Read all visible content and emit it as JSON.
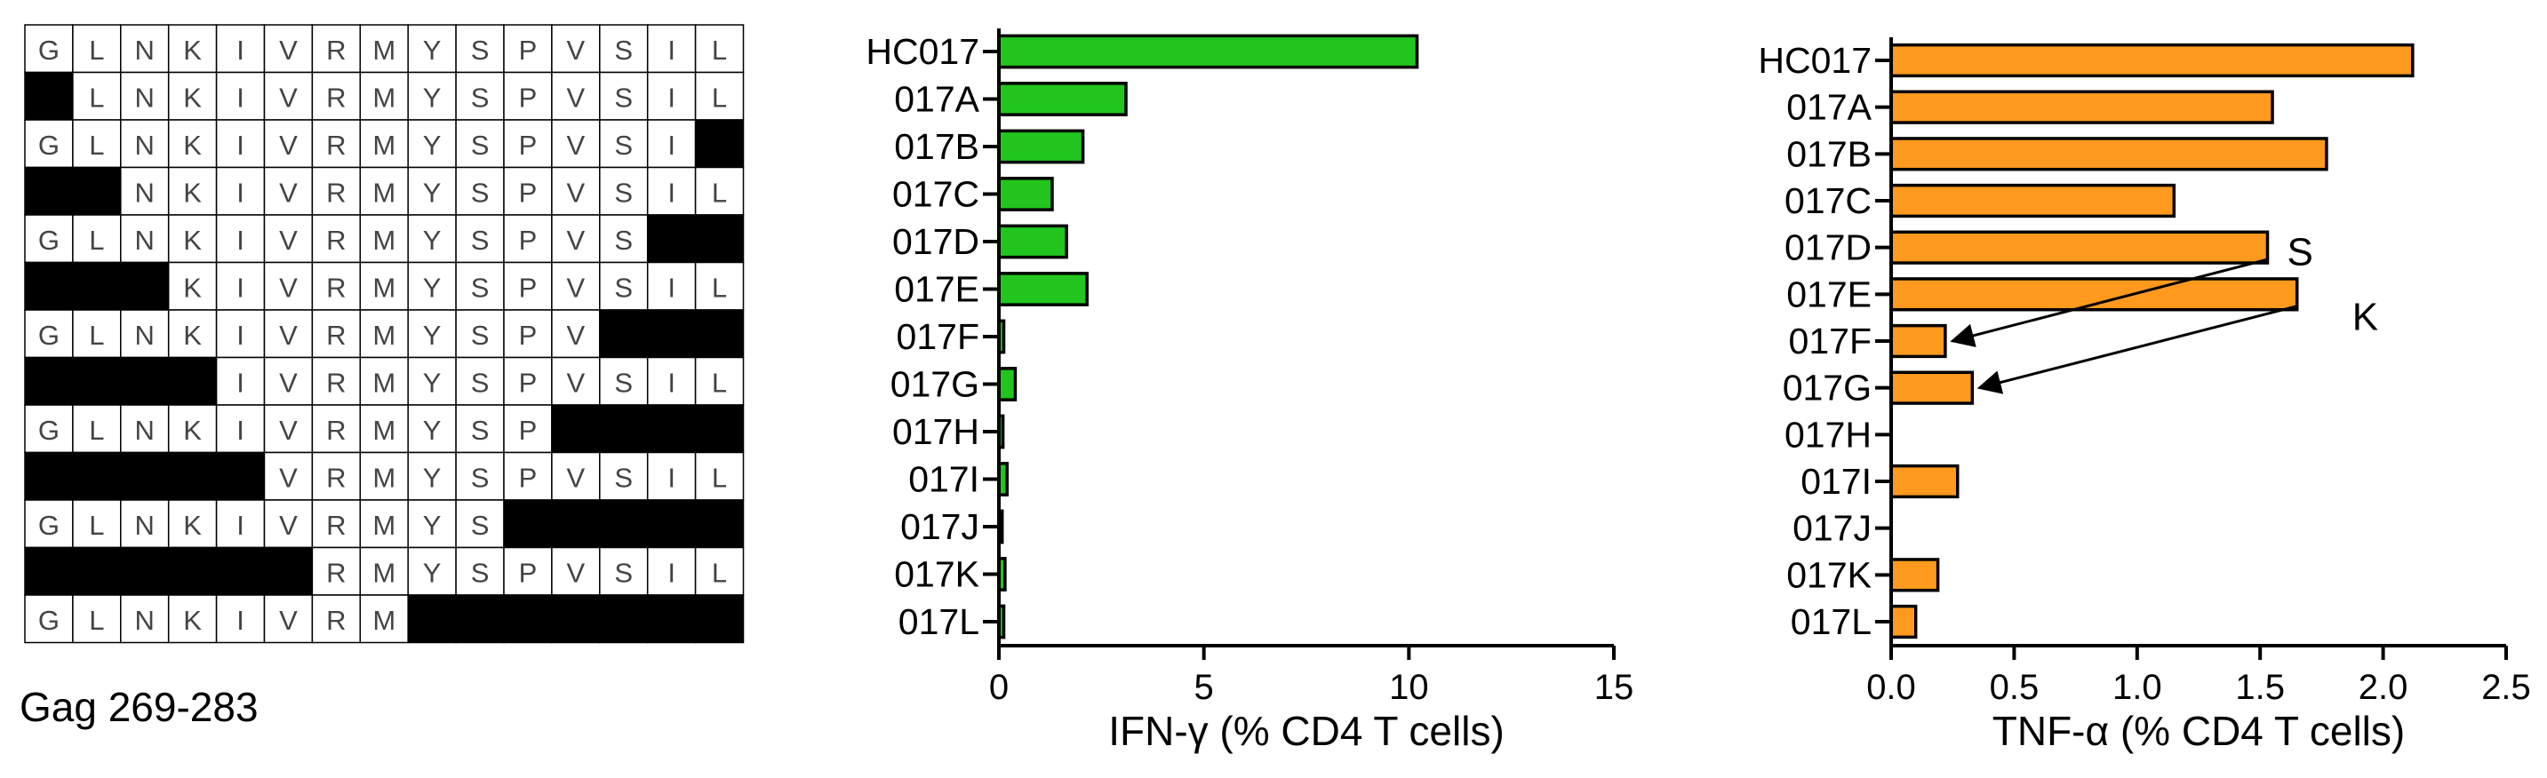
{
  "peptide_grid": {
    "caption": "Gag 269-283",
    "rows": [
      [
        "G",
        "L",
        "N",
        "K",
        "I",
        "V",
        "R",
        "M",
        "Y",
        "S",
        "P",
        "V",
        "S",
        "I",
        "L"
      ],
      [
        null,
        "L",
        "N",
        "K",
        "I",
        "V",
        "R",
        "M",
        "Y",
        "S",
        "P",
        "V",
        "S",
        "I",
        "L"
      ],
      [
        "G",
        "L",
        "N",
        "K",
        "I",
        "V",
        "R",
        "M",
        "Y",
        "S",
        "P",
        "V",
        "S",
        "I",
        null
      ],
      [
        null,
        null,
        "N",
        "K",
        "I",
        "V",
        "R",
        "M",
        "Y",
        "S",
        "P",
        "V",
        "S",
        "I",
        "L"
      ],
      [
        "G",
        "L",
        "N",
        "K",
        "I",
        "V",
        "R",
        "M",
        "Y",
        "S",
        "P",
        "V",
        "S",
        null,
        null
      ],
      [
        null,
        null,
        null,
        "K",
        "I",
        "V",
        "R",
        "M",
        "Y",
        "S",
        "P",
        "V",
        "S",
        "I",
        "L"
      ],
      [
        "G",
        "L",
        "N",
        "K",
        "I",
        "V",
        "R",
        "M",
        "Y",
        "S",
        "P",
        "V",
        null,
        null,
        null
      ],
      [
        null,
        null,
        null,
        null,
        "I",
        "V",
        "R",
        "M",
        "Y",
        "S",
        "P",
        "V",
        "S",
        "I",
        "L"
      ],
      [
        "G",
        "L",
        "N",
        "K",
        "I",
        "V",
        "R",
        "M",
        "Y",
        "S",
        "P",
        null,
        null,
        null,
        null
      ],
      [
        null,
        null,
        null,
        null,
        null,
        "V",
        "R",
        "M",
        "Y",
        "S",
        "P",
        "V",
        "S",
        "I",
        "L"
      ],
      [
        "G",
        "L",
        "N",
        "K",
        "I",
        "V",
        "R",
        "M",
        "Y",
        "S",
        null,
        null,
        null,
        null,
        null
      ],
      [
        null,
        null,
        null,
        null,
        null,
        null,
        "R",
        "M",
        "Y",
        "S",
        "P",
        "V",
        "S",
        "I",
        "L"
      ],
      [
        "G",
        "L",
        "N",
        "K",
        "I",
        "V",
        "R",
        "M",
        null,
        null,
        null,
        null,
        null,
        null,
        null
      ]
    ]
  },
  "chart_data": [
    {
      "type": "bar",
      "orientation": "horizontal",
      "categories": [
        "HC017",
        "017A",
        "017B",
        "017C",
        "017D",
        "017E",
        "017F",
        "017G",
        "017H",
        "017I",
        "017J",
        "017K",
        "017L"
      ],
      "values": [
        10.2,
        3.1,
        2.05,
        1.3,
        1.65,
        2.15,
        0.12,
        0.4,
        0.1,
        0.2,
        0.08,
        0.15,
        0.12
      ],
      "xlabel": "IFN-γ (% CD4 T cells)",
      "ylabel": "",
      "xlim": [
        0,
        15
      ],
      "xticks": [
        "0",
        "5",
        "10",
        "15"
      ],
      "bar_color": "#22c51e"
    },
    {
      "type": "bar",
      "orientation": "horizontal",
      "categories": [
        "HC017",
        "017A",
        "017B",
        "017C",
        "017D",
        "017E",
        "017F",
        "017G",
        "017H",
        "017I",
        "017J",
        "017K",
        "017L"
      ],
      "values": [
        2.12,
        1.55,
        1.77,
        1.15,
        1.53,
        1.65,
        0.22,
        0.33,
        0,
        0.27,
        0,
        0.19,
        0.1
      ],
      "xlabel": "TNF-α (% CD4 T cells)",
      "ylabel": "",
      "xlim": [
        0,
        2.5
      ],
      "xticks": [
        "0.0",
        "0.5",
        "1.0",
        "1.5",
        "2.0",
        "2.5"
      ],
      "bar_color": "#ff9a1f",
      "annotations": [
        {
          "text": "S",
          "from": "017D",
          "to": "017F"
        },
        {
          "text": "K",
          "from": "017E",
          "to": "017G"
        }
      ]
    }
  ]
}
